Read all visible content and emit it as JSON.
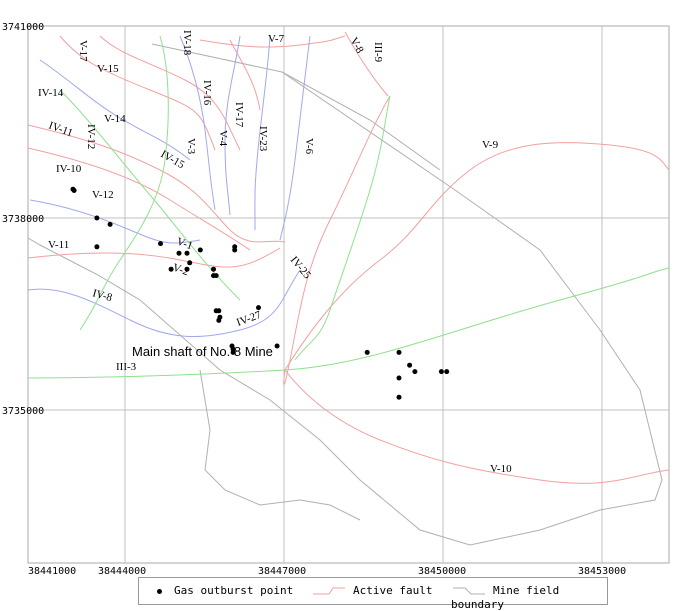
{
  "x_ticks": [
    "38441000",
    "38444000",
    "38447000",
    "38450000",
    "38453000"
  ],
  "y_ticks": [
    "3741000",
    "3738000",
    "3735000"
  ],
  "fault_labels": [
    "V-17",
    "V-15",
    "IV-14",
    "V-14",
    "IV-11",
    "IV-12",
    "IV-10",
    "V-12",
    "V-11",
    "IV-18",
    "V-7",
    "V-8",
    "III-9",
    "IV-16",
    "IV-17",
    "V-3",
    "V-4",
    "IV-15",
    "IV-23",
    "V-6",
    "V-9",
    "V-1",
    "V-2",
    "IV-25",
    "IV-8",
    "IV-27",
    "III-3",
    "V-10"
  ],
  "place_label": "Main shaft of No. 8 Mine",
  "legend": {
    "outburst": "Gas outburst point",
    "fault": "Active fault",
    "boundary": "Mine field boundary"
  },
  "colors": {
    "fault_red": "#f2a0a0",
    "fault_blue": "#a0a8ee",
    "fault_green": "#8fe08f",
    "boundary": "#b0b0b0",
    "grid": "#c0c0c0",
    "point": "#000000"
  },
  "outburst_points": [
    [
      38441850,
      3738450
    ],
    [
      38441870,
      3738430
    ],
    [
      38442300,
      3738000
    ],
    [
      38442300,
      3737550
    ],
    [
      38442550,
      3737900
    ],
    [
      38443500,
      3737600
    ],
    [
      38443850,
      3737450
    ],
    [
      38444000,
      3737450
    ],
    [
      38444050,
      3737300
    ],
    [
      38444000,
      3737200
    ],
    [
      38443700,
      3737200
    ],
    [
      38444500,
      3737200
    ],
    [
      38444500,
      3737100
    ],
    [
      38444550,
      3737100
    ],
    [
      38444250,
      3737500
    ],
    [
      38444900,
      3737500
    ],
    [
      38444900,
      3737550
    ],
    [
      38444550,
      3736550
    ],
    [
      38444600,
      3736550
    ],
    [
      38444620,
      3736450
    ],
    [
      38444600,
      3736400
    ],
    [
      38444850,
      3736000
    ],
    [
      38444870,
      3735950
    ],
    [
      38444870,
      3735900
    ],
    [
      38445350,
      3736600
    ],
    [
      38445700,
      3736000
    ],
    [
      38447400,
      3735900
    ],
    [
      38448000,
      3735900
    ],
    [
      38448200,
      3735700
    ],
    [
      38448300,
      3735600
    ],
    [
      38448000,
      3735500
    ],
    [
      38448800,
      3735600
    ],
    [
      38448900,
      3735600
    ],
    [
      38448000,
      3735200
    ]
  ]
}
